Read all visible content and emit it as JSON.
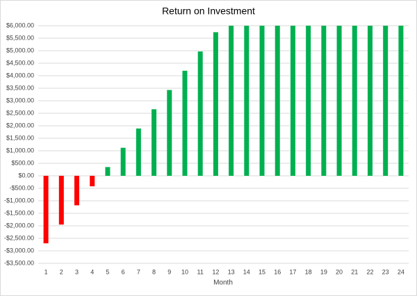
{
  "chart_data": {
    "type": "bar",
    "title": "Return on Investment",
    "x_label": "Month",
    "categories": [
      1,
      2,
      3,
      4,
      5,
      6,
      7,
      8,
      9,
      10,
      11,
      12,
      13,
      14,
      15,
      16,
      17,
      18,
      19,
      20,
      21,
      22,
      23,
      24
    ],
    "values": [
      -2700,
      -1950,
      -1180,
      -420,
      350,
      1120,
      1890,
      2660,
      3430,
      4200,
      4970,
      5740,
      6000,
      6000,
      6000,
      6000,
      6000,
      6000,
      6000,
      6000,
      6000,
      6000,
      6000,
      6000
    ],
    "color_positive": "#00b050",
    "color_negative": "#ff0000",
    "ylim": [
      -3500,
      6000
    ],
    "yticks": [
      {
        "value": -3500,
        "label": "-$3,500.00"
      },
      {
        "value": -3000,
        "label": "-$3,000.00"
      },
      {
        "value": -2500,
        "label": "-$2,500.00"
      },
      {
        "value": -2000,
        "label": "-$2,000.00"
      },
      {
        "value": -1500,
        "label": "-$1,500.00"
      },
      {
        "value": -1000,
        "label": "-$1,000.00"
      },
      {
        "value": -500,
        "label": "-$500.00"
      },
      {
        "value": 0,
        "label": "$0.00"
      },
      {
        "value": 500,
        "label": "$500.00"
      },
      {
        "value": 1000,
        "label": "$1,000.00"
      },
      {
        "value": 1500,
        "label": "$1,500.00"
      },
      {
        "value": 2000,
        "label": "$2,000.00"
      },
      {
        "value": 2500,
        "label": "$2,500.00"
      },
      {
        "value": 3000,
        "label": "$3,000.00"
      },
      {
        "value": 3500,
        "label": "$3,500.00"
      },
      {
        "value": 4000,
        "label": "$4,000.00"
      },
      {
        "value": 4500,
        "label": "$4,500.00"
      },
      {
        "value": 5000,
        "label": "$5,000.00"
      },
      {
        "value": 5500,
        "label": "$5,500.00"
      },
      {
        "value": 6000,
        "label": "$6,000.00"
      }
    ],
    "grid": true
  }
}
